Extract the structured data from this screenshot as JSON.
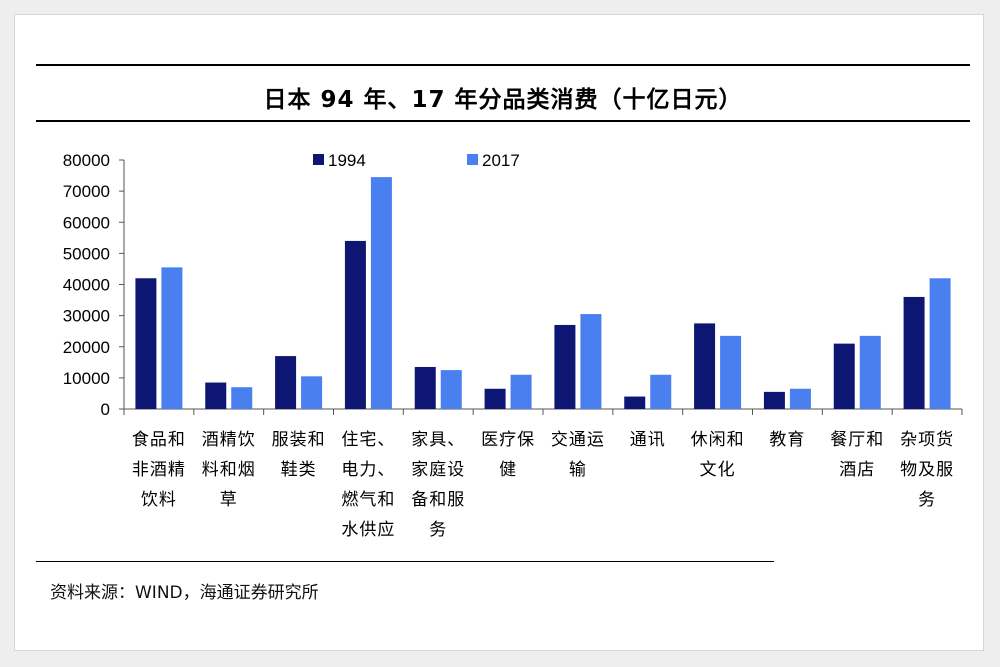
{
  "chart_data": {
    "type": "bar",
    "title": "日本 94 年、17 年分品类消费（十亿日元）",
    "categories": [
      [
        "食品和",
        "非酒精",
        "饮料"
      ],
      [
        "酒精饮",
        "料和烟",
        "草"
      ],
      [
        "服装和",
        "鞋类"
      ],
      [
        "住宅、",
        "电力、",
        "燃气和",
        "水供应"
      ],
      [
        "家具、",
        "家庭设",
        "备和服",
        "务"
      ],
      [
        "医疗保",
        "健"
      ],
      [
        "交通运",
        "输"
      ],
      [
        "通讯"
      ],
      [
        "休闲和",
        "文化"
      ],
      [
        "教育"
      ],
      [
        "餐厅和",
        "酒店"
      ],
      [
        "杂项货",
        "物及服",
        "务"
      ]
    ],
    "series": [
      {
        "name": "1994",
        "color": "#0d1773",
        "values": [
          42000,
          8500,
          17000,
          54000,
          13500,
          6500,
          27000,
          4000,
          27500,
          5500,
          21000,
          36000
        ]
      },
      {
        "name": "2017",
        "color": "#4a7ff0",
        "values": [
          45500,
          7000,
          10500,
          74500,
          12500,
          11000,
          30500,
          11000,
          23500,
          6500,
          23500,
          42000
        ]
      }
    ],
    "ylim": [
      0,
      80000
    ],
    "yticks": [
      "80000",
      "70000",
      "60000",
      "50000",
      "40000",
      "30000",
      "20000",
      "10000",
      "0"
    ],
    "legend_position": "top-center",
    "grid": false
  },
  "source": "资料来源：WIND，海通证券研究所"
}
